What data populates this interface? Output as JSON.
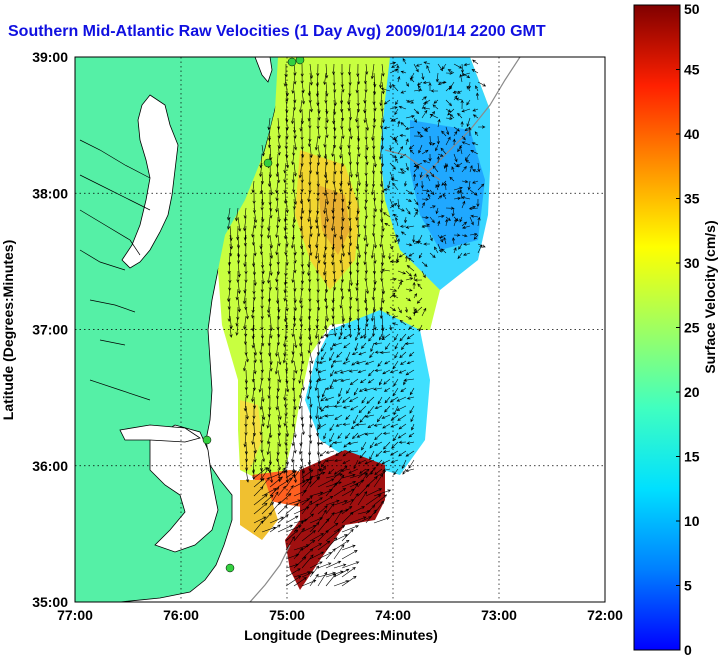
{
  "title": "Southern Mid-Atlantic Raw Velocities (1 Day Avg) 2009/01/14 2200 GMT",
  "map": {
    "xlabel": "Longitude (Degrees:Minutes)",
    "ylabel": "Latitude (Degrees:Minutes)",
    "x_ticks": [
      "77:00",
      "76:00",
      "75:00",
      "74:00",
      "73:00",
      "72:00"
    ],
    "y_ticks": [
      "39:00",
      "38:00",
      "37:00",
      "36:00",
      "35:00"
    ],
    "xlim": [
      -77,
      -72
    ],
    "ylim": [
      35,
      39
    ],
    "grid": true
  },
  "colorbar": {
    "label": "Surface Velocity (cm/s)",
    "ticks": [
      "50",
      "45",
      "40",
      "35",
      "30",
      "25",
      "20",
      "15",
      "10",
      "5",
      "0"
    ],
    "range": [
      0,
      50
    ],
    "colormap": "jet"
  },
  "colors": {
    "land": "#55f0a6",
    "title": "#1010e0",
    "bathymetry": "#8a8a8a"
  }
}
